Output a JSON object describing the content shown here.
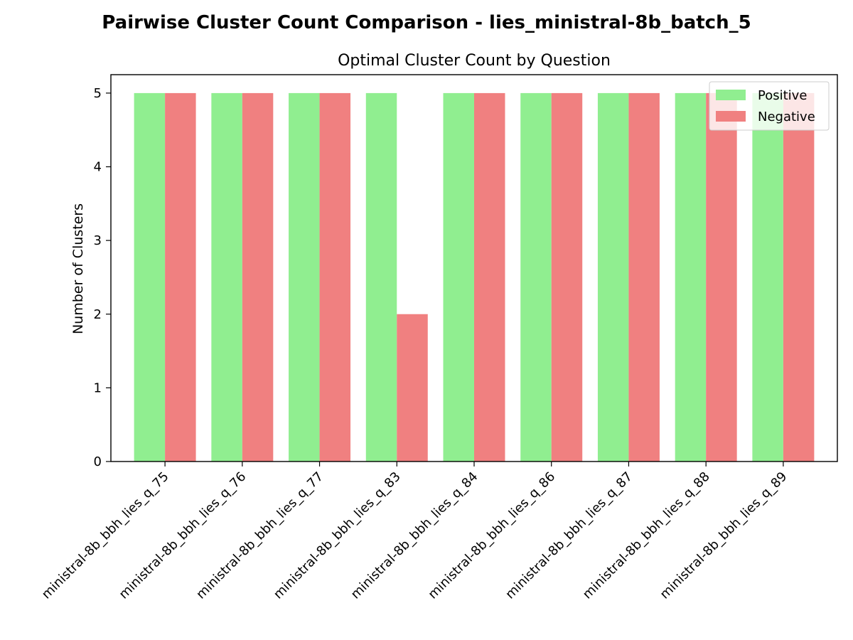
{
  "chart_data": {
    "type": "bar",
    "suptitle": "Pairwise Cluster Count Comparison - lies_ministral-8b_batch_5",
    "title": "Optimal Cluster Count by Question",
    "xlabel": "",
    "ylabel": "Number of Clusters",
    "ylim": [
      0,
      5.25
    ],
    "yticks": [
      0,
      1,
      2,
      3,
      4,
      5
    ],
    "grid": false,
    "legend_position": "top-right",
    "categories": [
      "ministral-8b_bbh_lies_q_75",
      "ministral-8b_bbh_lies_q_76",
      "ministral-8b_bbh_lies_q_77",
      "ministral-8b_bbh_lies_q_83",
      "ministral-8b_bbh_lies_q_84",
      "ministral-8b_bbh_lies_q_86",
      "ministral-8b_bbh_lies_q_87",
      "ministral-8b_bbh_lies_q_88",
      "ministral-8b_bbh_lies_q_89"
    ],
    "series": [
      {
        "name": "Positive",
        "color": "#90ee90",
        "values": [
          5,
          5,
          5,
          5,
          5,
          5,
          5,
          5,
          5
        ]
      },
      {
        "name": "Negative",
        "color": "#f08080",
        "values": [
          5,
          5,
          5,
          2,
          5,
          5,
          5,
          5,
          5
        ]
      }
    ]
  }
}
